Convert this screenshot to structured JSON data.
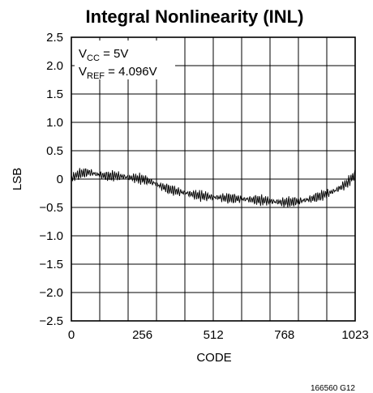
{
  "chart_data": {
    "type": "line",
    "title": "Integral Nonlinearity (INL)",
    "xlabel": "CODE",
    "ylabel": "LSB",
    "xlim": [
      0,
      1023
    ],
    "ylim": [
      -2.5,
      2.5
    ],
    "x_ticks": [
      0,
      256,
      512,
      768,
      1023
    ],
    "y_ticks": [
      2.5,
      2.0,
      1.5,
      1.0,
      0.5,
      0,
      -0.5,
      -1.0,
      -1.5,
      -2.0,
      -2.5
    ],
    "y_tick_labels": [
      "2.5",
      "2.0",
      "1.5",
      "1.0",
      "0.5",
      "0",
      "−0.5",
      "−1.0",
      "−1.5",
      "−2.0",
      "−2.5"
    ],
    "x_tick_labels": [
      "0",
      "256",
      "512",
      "768",
      "1023"
    ],
    "grid": true,
    "line_color": "#000000",
    "annotations": [
      {
        "main": "V",
        "sub": "CC",
        "rest": " = 5V"
      },
      {
        "main": "V",
        "sub": "REF",
        "rest": " = 4.096V"
      }
    ],
    "series": [
      {
        "x": [
          0,
          32,
          64,
          96,
          128,
          160,
          192,
          224,
          256,
          288,
          320,
          352,
          384,
          416,
          448,
          480,
          512,
          544,
          576,
          608,
          640,
          672,
          704,
          736,
          768,
          800,
          832,
          864,
          896,
          928,
          960,
          992,
          1023
        ],
        "values": [
          0.02,
          0.1,
          0.12,
          0.08,
          0.05,
          0.06,
          0.04,
          0.02,
          0.0,
          -0.05,
          -0.12,
          -0.18,
          -0.22,
          -0.25,
          -0.28,
          -0.3,
          -0.32,
          -0.33,
          -0.34,
          -0.35,
          -0.36,
          -0.37,
          -0.38,
          -0.4,
          -0.41,
          -0.4,
          -0.38,
          -0.35,
          -0.3,
          -0.25,
          -0.18,
          -0.08,
          0.08
        ]
      }
    ]
  },
  "footnote": "166560 G12"
}
